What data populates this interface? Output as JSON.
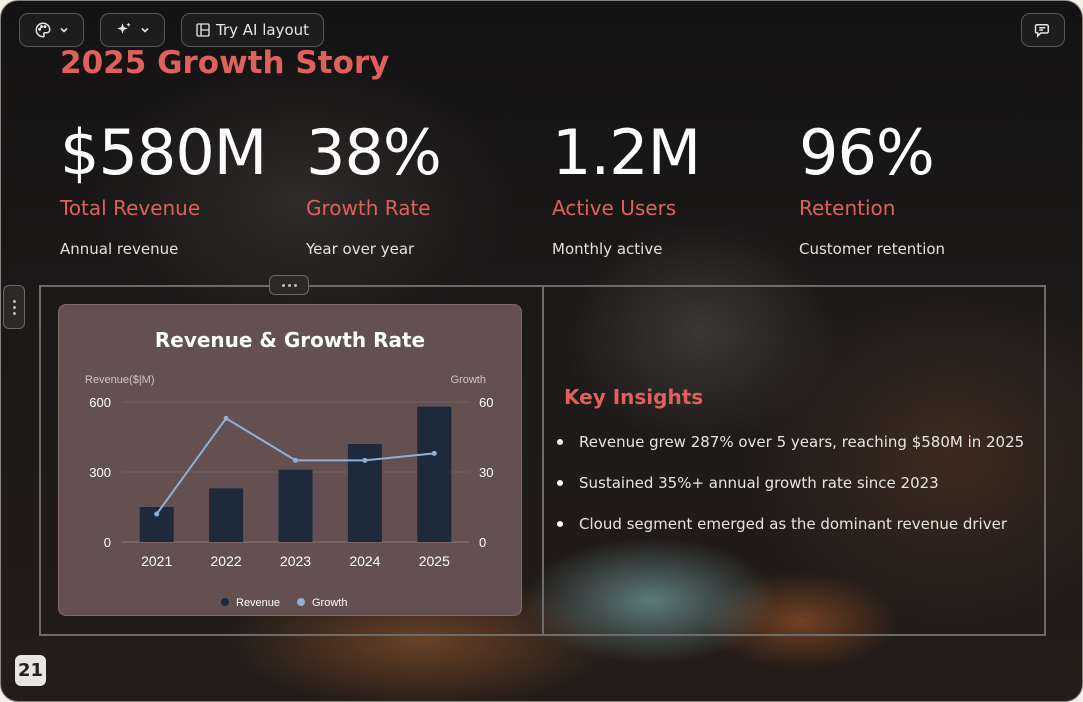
{
  "toolbar": {
    "theme_icon": "palette-icon",
    "ai_icon": "sparkles-icon",
    "try_ai_label": "Try AI layout",
    "layout_icon": "layout-icon",
    "comment_icon": "comment-icon"
  },
  "slide": {
    "title": "2025 Growth Story",
    "stats": [
      {
        "value": "$580M",
        "label": "Total Revenue",
        "desc": "Annual revenue"
      },
      {
        "value": "38%",
        "label": "Growth Rate",
        "desc": "Year over year"
      },
      {
        "value": "1.2M",
        "label": "Active Users",
        "desc": "Monthly active"
      },
      {
        "value": "96%",
        "label": "Retention",
        "desc": "Customer retention"
      }
    ],
    "insights": {
      "title": "Key Insights",
      "items": [
        "Revenue grew 287% over 5 years, reaching $580M in 2025",
        "Sustained 35%+ annual growth rate since 2023",
        "Cloud segment emerged as the dominant revenue driver"
      ]
    },
    "page_number": "21"
  },
  "colors": {
    "accent": "#e0605c",
    "bar": "#1c2a3b",
    "line": "#8fb0d8",
    "card": "#645050"
  },
  "chart_data": {
    "type": "bar",
    "title": "Revenue & Growth Rate",
    "categories": [
      "2021",
      "2022",
      "2023",
      "2024",
      "2025"
    ],
    "series": [
      {
        "name": "Revenue",
        "type": "bar",
        "axis": "left",
        "values": [
          150,
          230,
          310,
          420,
          580
        ]
      },
      {
        "name": "Growth",
        "type": "line",
        "axis": "right",
        "values": [
          12,
          53,
          35,
          35,
          38
        ]
      }
    ],
    "ylabel_left": "Revenue($|M)",
    "ylabel_right": "Growth",
    "ylim_left": [
      0,
      600
    ],
    "ylim_right": [
      0,
      60
    ],
    "yticks_left": [
      "0",
      "300",
      "600"
    ],
    "yticks_right": [
      "0",
      "30",
      "60"
    ],
    "grid": true,
    "legend": "bottom"
  }
}
